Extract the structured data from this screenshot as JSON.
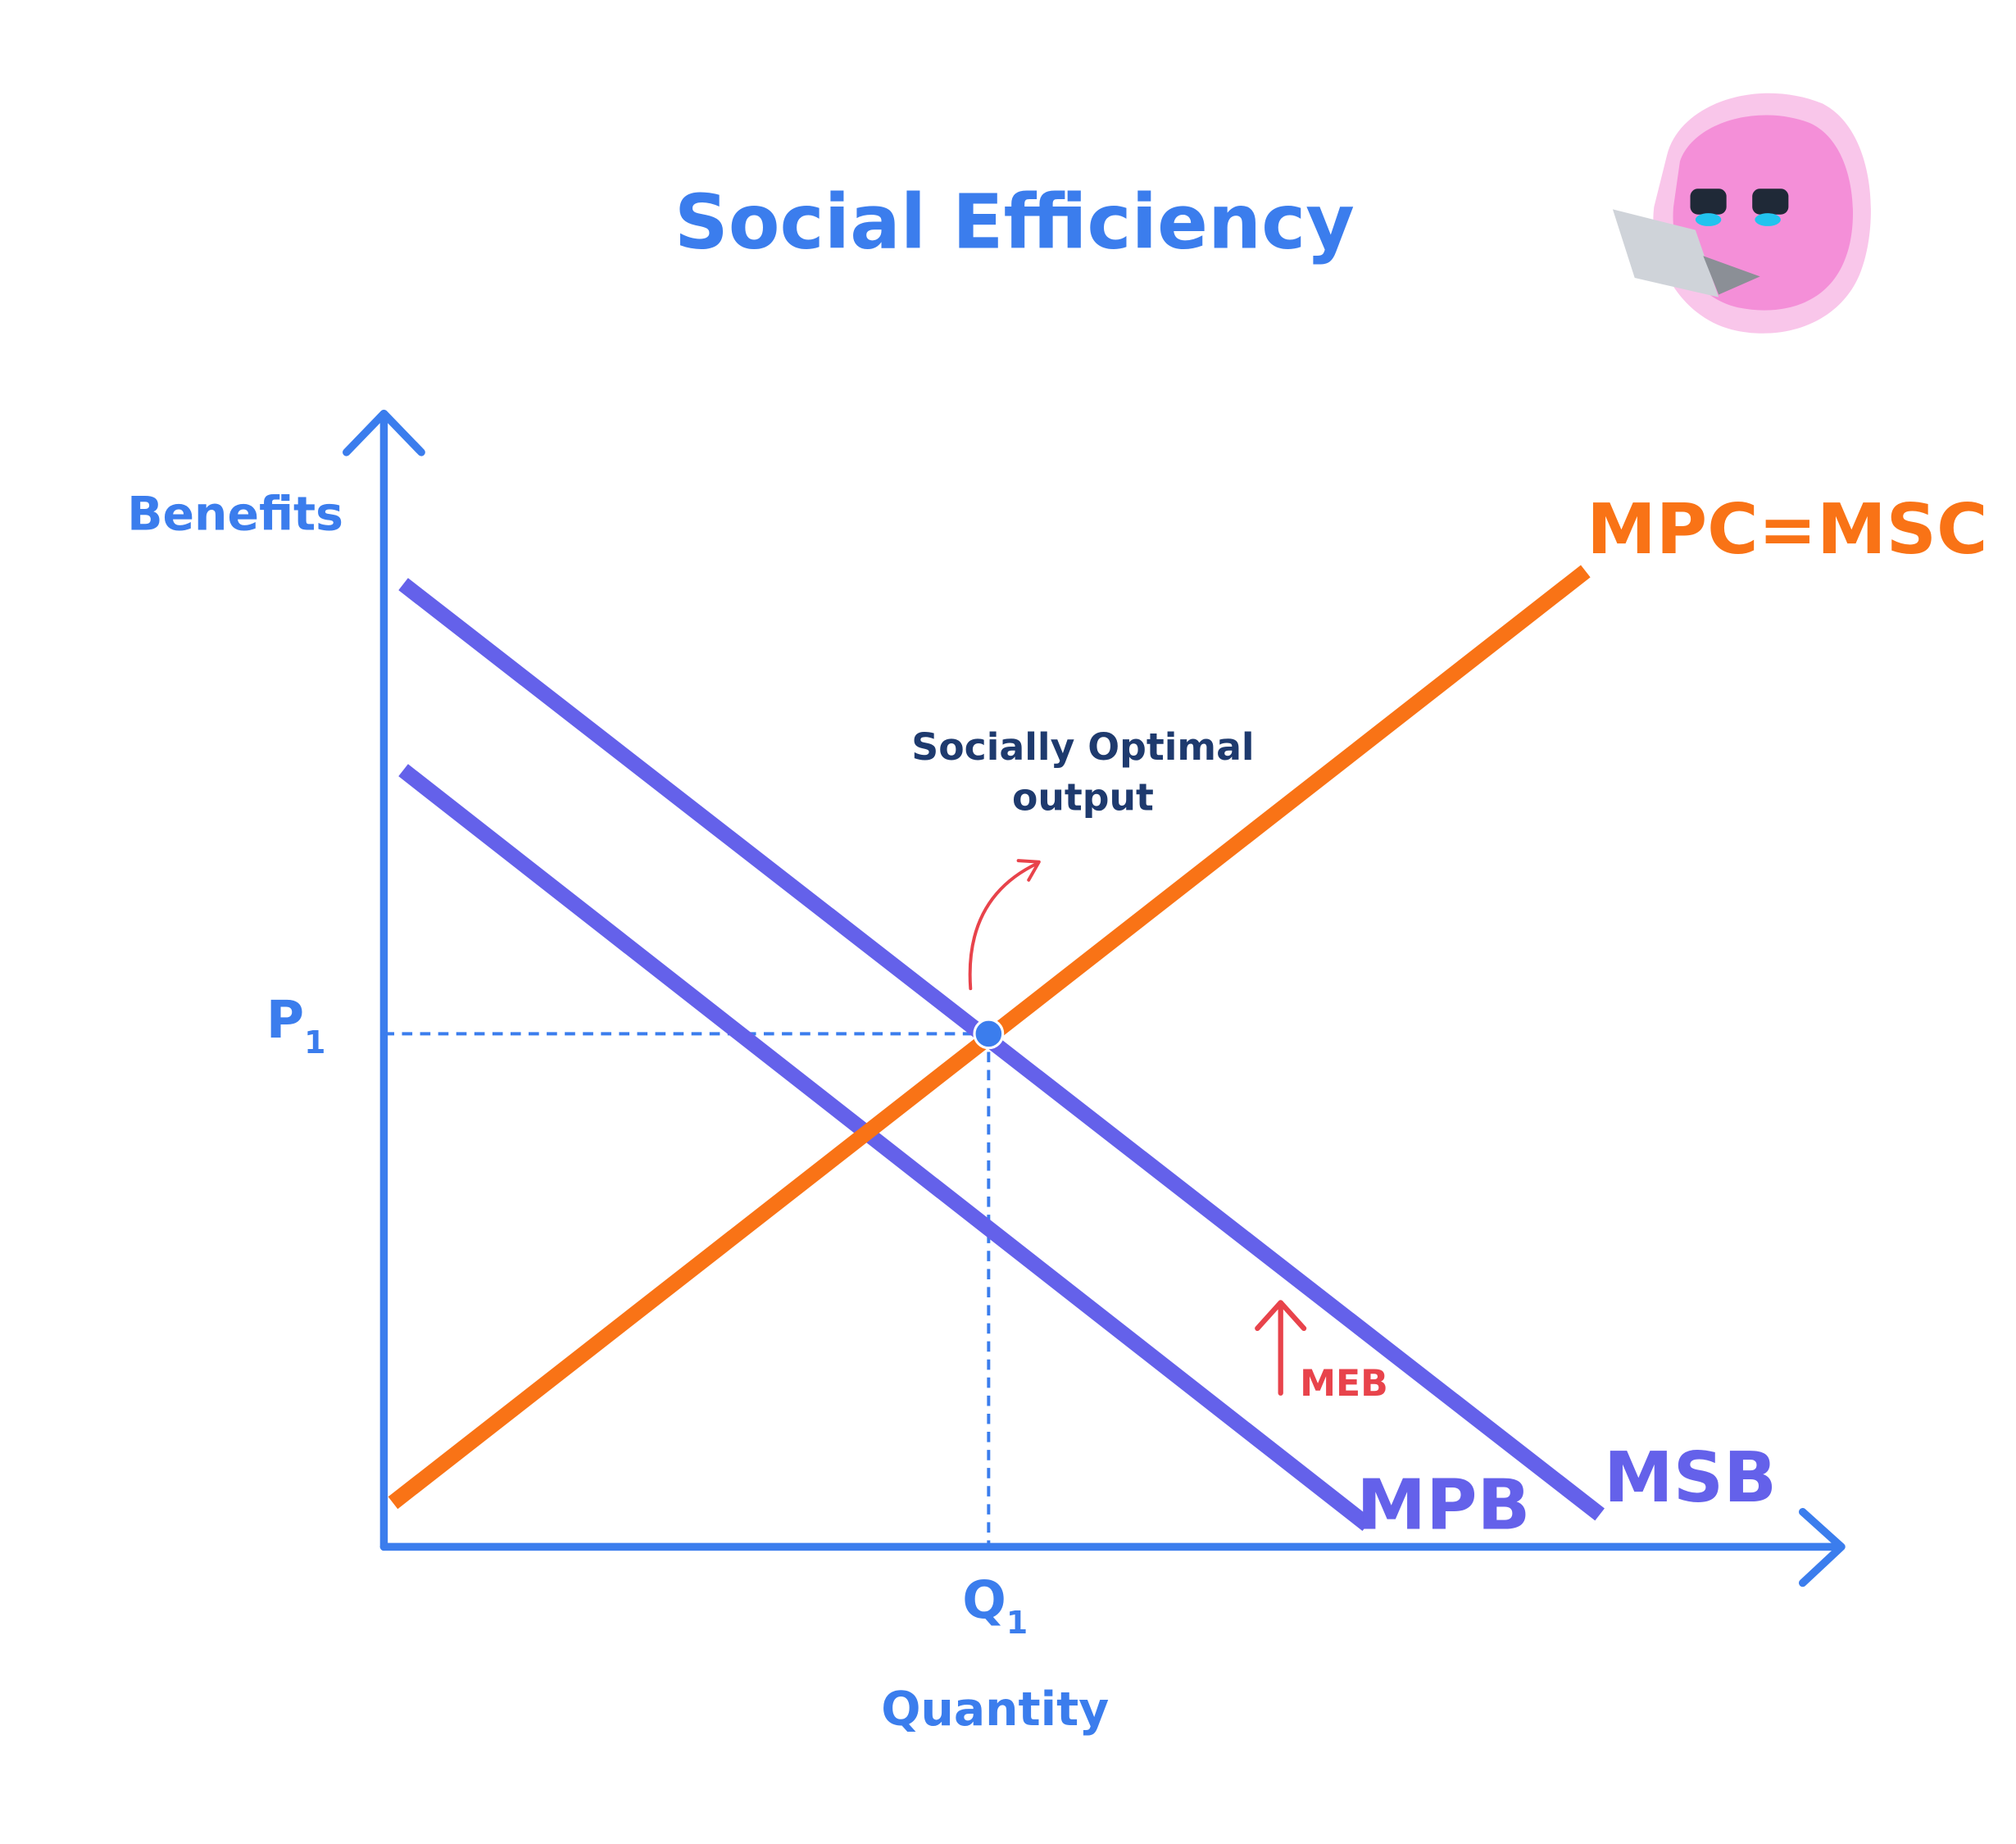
{
  "title": "Social Efficiency",
  "axes": {
    "y_label": "Benefits",
    "x_label": "Quantity"
  },
  "curves": {
    "msb": "MSB",
    "mpb": "MPB",
    "supply": "MPC=MSC"
  },
  "markers": {
    "price": {
      "text": "P",
      "subscript": "1"
    },
    "quantity": {
      "text": "Q",
      "subscript": "1"
    }
  },
  "annotation": {
    "lines": [
      "Socially Optimal",
      "output"
    ]
  },
  "shift_label": "MEB"
}
